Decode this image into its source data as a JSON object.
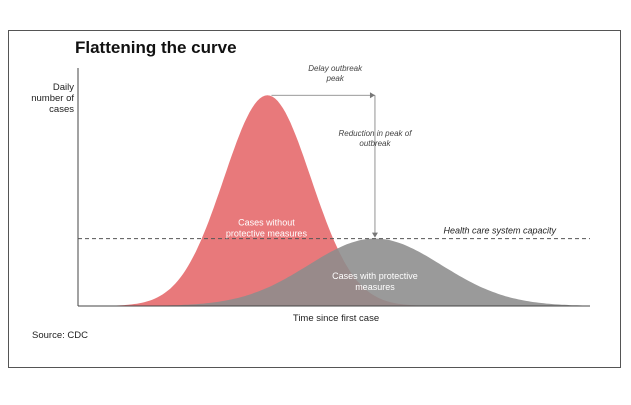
{
  "chart_data": {
    "type": "area",
    "title": "Flattening the curve",
    "ylabel": "Daily number of cases",
    "xlabel": "Time since first case",
    "source": "Source: CDC",
    "grid": false,
    "series": [
      {
        "name": "Cases without protective measures",
        "color": "#e8797b",
        "peak_time": 37,
        "peak_value": 100,
        "spread": 8.5
      },
      {
        "name": "Cases with protective measures",
        "color": "#8c8c8c",
        "peak_time": 58,
        "peak_value": 32,
        "spread": 13
      }
    ],
    "xlim": [
      0,
      100
    ],
    "ylim": [
      0,
      112
    ],
    "capacity": {
      "label": "Health care system capacity",
      "value": 32
    },
    "annotations": [
      {
        "text_lines": [
          "Delay outbreak",
          "peak"
        ]
      },
      {
        "text_lines": [
          "Reduction in peak of",
          "outbreak"
        ]
      }
    ]
  }
}
